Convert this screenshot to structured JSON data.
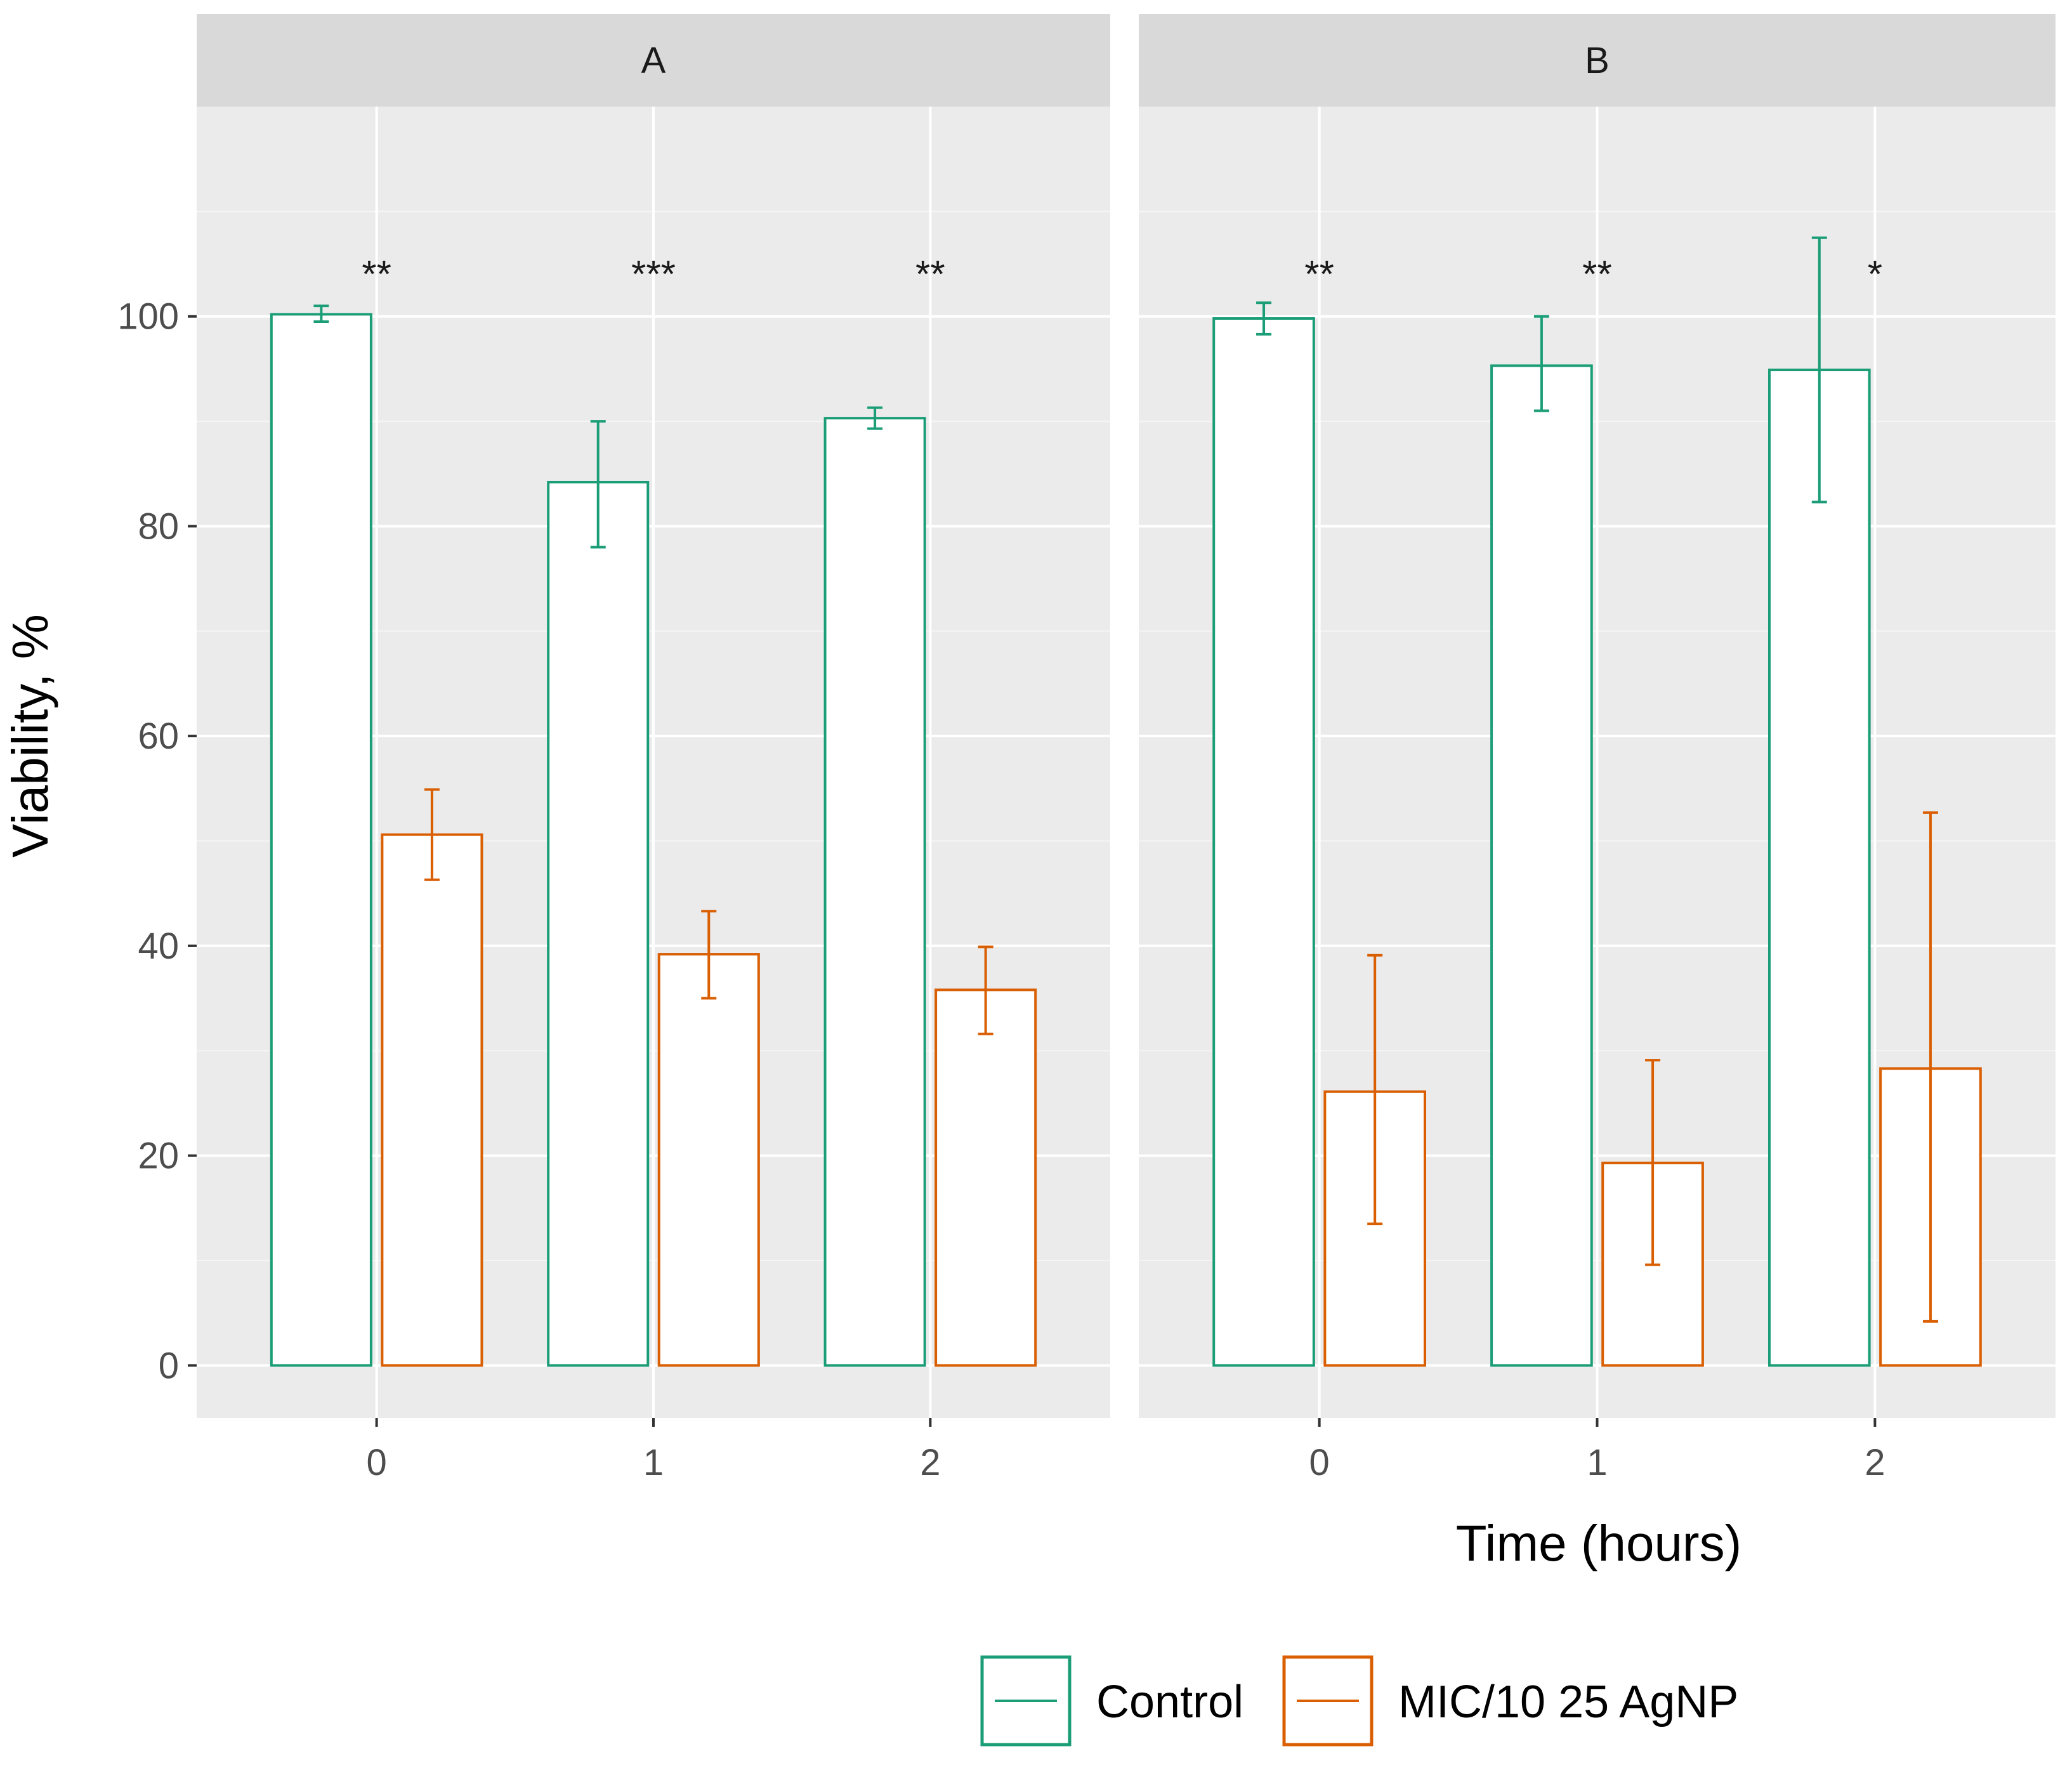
{
  "chart_data": {
    "type": "bar",
    "ylabel": "Viability, %",
    "xlabel": "Time (hours)",
    "ylim": [
      -5,
      120
    ],
    "yticks": [
      0,
      20,
      40,
      60,
      80,
      100
    ],
    "categories": [
      "0",
      "1",
      "2"
    ],
    "grid": true,
    "legend": {
      "placement": "bottom",
      "items": [
        "Control",
        "MIC/10 25 AgNP"
      ]
    },
    "colors": {
      "Control": "#1b9e77",
      "MIC/10 25 AgNP": "#d95f02"
    },
    "panels": [
      {
        "label": "A",
        "series": [
          {
            "name": "Control",
            "values": [
              100.2,
              84.2,
              90.3
            ],
            "err_low": [
              99.5,
              78.0,
              89.3
            ],
            "err_high": [
              101.0,
              90.0,
              91.3
            ]
          },
          {
            "name": "MIC/10 25 AgNP",
            "values": [
              50.6,
              39.2,
              35.8
            ],
            "err_low": [
              46.3,
              35.0,
              31.6
            ],
            "err_high": [
              54.9,
              43.3,
              39.9
            ]
          }
        ],
        "significance": [
          "**",
          "***",
          "**"
        ]
      },
      {
        "label": "B",
        "series": [
          {
            "name": "Control",
            "values": [
              99.8,
              95.3,
              94.9
            ],
            "err_low": [
              98.3,
              91.0,
              82.3
            ],
            "err_high": [
              101.3,
              100.0,
              107.5
            ]
          },
          {
            "name": "MIC/10 25 AgNP",
            "values": [
              26.1,
              19.3,
              28.3
            ],
            "err_low": [
              13.5,
              9.6,
              4.2
            ],
            "err_high": [
              39.1,
              29.1,
              52.7
            ]
          }
        ],
        "significance": [
          "**",
          "**",
          "*"
        ]
      }
    ]
  }
}
